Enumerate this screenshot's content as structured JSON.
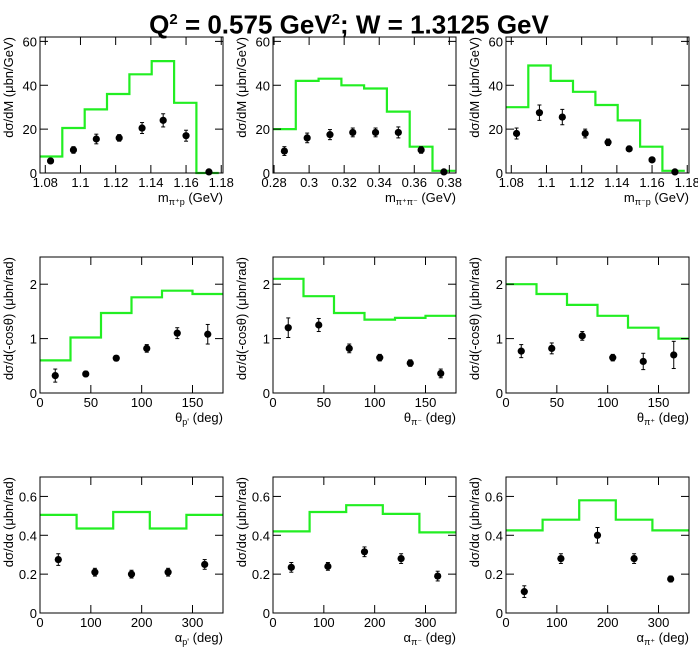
{
  "title": {
    "part1": "Q",
    "sup1": "2",
    "part2": " = 0.575 GeV",
    "sup2": "2",
    "part3": "; W = 1.3125 GeV"
  },
  "colors": {
    "model": "#22ee22",
    "data": "#000000",
    "axis": "#000000"
  },
  "chart_data": [
    {
      "type": "histogram+scatter",
      "ylabel": "dσ/dM (μbn/GeV)",
      "xlabel_main": "m",
      "xlabel_sub": "π⁺p",
      "xlabel_unit": "(GeV)",
      "xlim": [
        1.077,
        1.181
      ],
      "ylim": [
        0,
        62
      ],
      "xticks": [
        1.08,
        1.1,
        1.12,
        1.14,
        1.16,
        1.18
      ],
      "xtick_labels": [
        "1.08",
        "1.1",
        "1.12",
        "1.14",
        "1.16",
        "1.18"
      ],
      "yticks": [
        0,
        20,
        40,
        60
      ],
      "ytick_labels": [
        "0",
        "20",
        "40",
        "60"
      ],
      "model_edges": [
        1.077,
        1.0897,
        1.1024,
        1.1151,
        1.1278,
        1.1405,
        1.1532,
        1.1659,
        1.1786
      ],
      "model_values": [
        7.5,
        20.5,
        29,
        36,
        45,
        51,
        32,
        0
      ],
      "data_x": [
        1.083,
        1.096,
        1.109,
        1.122,
        1.135,
        1.147,
        1.16,
        1.173
      ],
      "data_y": [
        5.5,
        10.5,
        15.5,
        16,
        20.5,
        24,
        17,
        0.5
      ],
      "data_err": [
        1.2,
        1.5,
        2.2,
        1.5,
        2.5,
        3.0,
        2.5,
        0.4
      ]
    },
    {
      "type": "histogram+scatter",
      "ylabel": "dσ/dM (μbn/GeV)",
      "xlabel_main": "m",
      "xlabel_sub": "π⁺π⁻",
      "xlabel_unit": "(GeV)",
      "xlim": [
        0.2794,
        0.3838
      ],
      "ylim": [
        0,
        62
      ],
      "xticks": [
        0.28,
        0.3,
        0.32,
        0.34,
        0.36,
        0.38
      ],
      "xtick_labels": [
        "0.28",
        "0.3",
        "0.32",
        "0.34",
        "0.36",
        "0.38"
      ],
      "yticks": [
        0,
        20,
        40,
        60
      ],
      "ytick_labels": [
        "0",
        "20",
        "40",
        "60"
      ],
      "model_edges": [
        0.2794,
        0.2924,
        0.3054,
        0.3184,
        0.3314,
        0.3444,
        0.3574,
        0.3704,
        0.3834
      ],
      "model_values": [
        20,
        42,
        43,
        40,
        38.5,
        28,
        12,
        1
      ],
      "data_x": [
        0.2859,
        0.2989,
        0.3119,
        0.3249,
        0.3379,
        0.3509,
        0.3639,
        0.3769
      ],
      "data_y": [
        10,
        16,
        17.5,
        18.5,
        18.5,
        18.5,
        10.5,
        0.5
      ],
      "data_err": [
        2.0,
        2.2,
        2.3,
        2.0,
        2.0,
        2.5,
        1.5,
        0.4
      ]
    },
    {
      "type": "histogram+scatter",
      "ylabel": "dσ/dM (μbn/GeV)",
      "xlabel_main": "m",
      "xlabel_sub": "π⁻p",
      "xlabel_unit": "(GeV)",
      "xlim": [
        1.077,
        1.181
      ],
      "ylim": [
        0,
        62
      ],
      "xticks": [
        1.08,
        1.1,
        1.12,
        1.14,
        1.16,
        1.18
      ],
      "xtick_labels": [
        "1.08",
        "1.1",
        "1.12",
        "1.14",
        "1.16",
        "1.18"
      ],
      "yticks": [
        0,
        20,
        40,
        60
      ],
      "ytick_labels": [
        "0",
        "20",
        "40",
        "60"
      ],
      "model_edges": [
        1.077,
        1.0897,
        1.1024,
        1.1151,
        1.1278,
        1.1405,
        1.1532,
        1.1659,
        1.1786
      ],
      "model_values": [
        30,
        49,
        42,
        37,
        31,
        24,
        12,
        1
      ],
      "data_x": [
        1.083,
        1.096,
        1.109,
        1.122,
        1.135,
        1.147,
        1.16,
        1.173
      ],
      "data_y": [
        18,
        27.5,
        25.5,
        18,
        14,
        11,
        6,
        0.5
      ],
      "data_err": [
        2.5,
        3.5,
        3.5,
        2.0,
        1.5,
        1.2,
        1.0,
        0.4
      ]
    },
    {
      "type": "histogram+scatter",
      "ylabel": "dσ/d(-cosθ) (μbn/rad)",
      "xlabel_main": "θ",
      "xlabel_sub": "p'",
      "xlabel_unit": "(deg)",
      "xlim": [
        0,
        180
      ],
      "ylim": [
        0,
        2.5
      ],
      "xticks": [
        0,
        50,
        100,
        150
      ],
      "xtick_labels": [
        "0",
        "50",
        "100",
        "150"
      ],
      "yticks": [
        0,
        1,
        2
      ],
      "ytick_labels": [
        "0",
        "1",
        "2"
      ],
      "model_edges": [
        0,
        30,
        60,
        90,
        120,
        150,
        180
      ],
      "model_values": [
        0.6,
        1.02,
        1.47,
        1.76,
        1.88,
        1.82
      ],
      "data_x": [
        15,
        45,
        75,
        105,
        135,
        165
      ],
      "data_y": [
        0.32,
        0.35,
        0.64,
        0.82,
        1.1,
        1.08
      ],
      "data_err": [
        0.12,
        0.05,
        0.05,
        0.07,
        0.1,
        0.18
      ]
    },
    {
      "type": "histogram+scatter",
      "ylabel": "dσ/d(-cosθ) (μbn/rad)",
      "xlabel_main": "θ",
      "xlabel_sub": "π⁻",
      "xlabel_unit": "(deg)",
      "xlim": [
        0,
        180
      ],
      "ylim": [
        0,
        2.5
      ],
      "xticks": [
        0,
        50,
        100,
        150
      ],
      "xtick_labels": [
        "0",
        "50",
        "100",
        "150"
      ],
      "yticks": [
        0,
        1,
        2
      ],
      "ytick_labels": [
        "0",
        "1",
        "2"
      ],
      "model_edges": [
        0,
        30,
        60,
        90,
        120,
        150,
        180
      ],
      "model_values": [
        2.1,
        1.78,
        1.47,
        1.35,
        1.38,
        1.42
      ],
      "data_x": [
        15,
        45,
        75,
        105,
        135,
        165
      ],
      "data_y": [
        1.2,
        1.25,
        0.82,
        0.65,
        0.55,
        0.36
      ],
      "data_err": [
        0.18,
        0.12,
        0.08,
        0.06,
        0.06,
        0.08
      ]
    },
    {
      "type": "histogram+scatter",
      "ylabel": "dσ/d(-cosθ) (μbn/rad)",
      "xlabel_main": "θ",
      "xlabel_sub": "π⁺",
      "xlabel_unit": "(deg)",
      "xlim": [
        0,
        180
      ],
      "ylim": [
        0,
        2.5
      ],
      "xticks": [
        0,
        50,
        100,
        150
      ],
      "xtick_labels": [
        "0",
        "50",
        "100",
        "150"
      ],
      "yticks": [
        0,
        1,
        2
      ],
      "ytick_labels": [
        "0",
        "1",
        "2"
      ],
      "model_edges": [
        0,
        30,
        60,
        90,
        120,
        150,
        180
      ],
      "model_values": [
        2.0,
        1.82,
        1.62,
        1.42,
        1.2,
        1.0
      ],
      "data_x": [
        15,
        45,
        75,
        105,
        135,
        165
      ],
      "data_y": [
        0.77,
        0.82,
        1.05,
        0.65,
        0.58,
        0.7
      ],
      "data_err": [
        0.12,
        0.1,
        0.08,
        0.06,
        0.15,
        0.25
      ]
    },
    {
      "type": "histogram+scatter",
      "ylabel": "dσ/dα (μbn/rad)",
      "xlabel_main": "α",
      "xlabel_sub": "p'",
      "xlabel_unit": "(deg)",
      "xlim": [
        0,
        360
      ],
      "ylim": [
        0,
        0.7
      ],
      "xticks": [
        0,
        100,
        200,
        300
      ],
      "xtick_labels": [
        "0",
        "100",
        "200",
        "300"
      ],
      "yticks": [
        0,
        0.2,
        0.4,
        0.6
      ],
      "ytick_labels": [
        "0",
        "0.2",
        "0.4",
        "0.6"
      ],
      "model_edges": [
        0,
        72,
        144,
        216,
        288,
        360
      ],
      "model_values": [
        0.505,
        0.435,
        0.52,
        0.435,
        0.505
      ],
      "data_x": [
        36,
        108,
        180,
        252,
        324
      ],
      "data_y": [
        0.275,
        0.21,
        0.2,
        0.21,
        0.25
      ],
      "data_err": [
        0.03,
        0.02,
        0.02,
        0.02,
        0.025
      ]
    },
    {
      "type": "histogram+scatter",
      "ylabel": "dσ/dα (μbn/rad)",
      "xlabel_main": "α",
      "xlabel_sub": "π⁻",
      "xlabel_unit": "(deg)",
      "xlim": [
        0,
        360
      ],
      "ylim": [
        0,
        0.7
      ],
      "xticks": [
        0,
        100,
        200,
        300
      ],
      "xtick_labels": [
        "0",
        "100",
        "200",
        "300"
      ],
      "yticks": [
        0,
        0.2,
        0.4,
        0.6
      ],
      "ytick_labels": [
        "0",
        "0.2",
        "0.4",
        "0.6"
      ],
      "model_edges": [
        0,
        72,
        144,
        216,
        288,
        360
      ],
      "model_values": [
        0.42,
        0.52,
        0.555,
        0.51,
        0.415
      ],
      "data_x": [
        36,
        108,
        180,
        252,
        324
      ],
      "data_y": [
        0.235,
        0.24,
        0.315,
        0.28,
        0.19
      ],
      "data_err": [
        0.025,
        0.02,
        0.025,
        0.025,
        0.025
      ]
    },
    {
      "type": "histogram+scatter",
      "ylabel": "dσ/dα (μbn/rad)",
      "xlabel_main": "α",
      "xlabel_sub": "π⁺",
      "xlabel_unit": "(deg)",
      "xlim": [
        0,
        360
      ],
      "ylim": [
        0,
        0.7
      ],
      "xticks": [
        0,
        100,
        200,
        300
      ],
      "xtick_labels": [
        "0",
        "100",
        "200",
        "300"
      ],
      "yticks": [
        0,
        0.2,
        0.4,
        0.6
      ],
      "ytick_labels": [
        "0",
        "0.2",
        "0.4",
        "0.6"
      ],
      "model_edges": [
        0,
        72,
        144,
        216,
        288,
        360
      ],
      "model_values": [
        0.425,
        0.48,
        0.58,
        0.48,
        0.425
      ],
      "data_x": [
        36,
        108,
        180,
        252,
        324
      ],
      "data_y": [
        0.11,
        0.28,
        0.4,
        0.28,
        0.175
      ],
      "data_err": [
        0.03,
        0.025,
        0.04,
        0.025,
        0.015
      ]
    }
  ]
}
